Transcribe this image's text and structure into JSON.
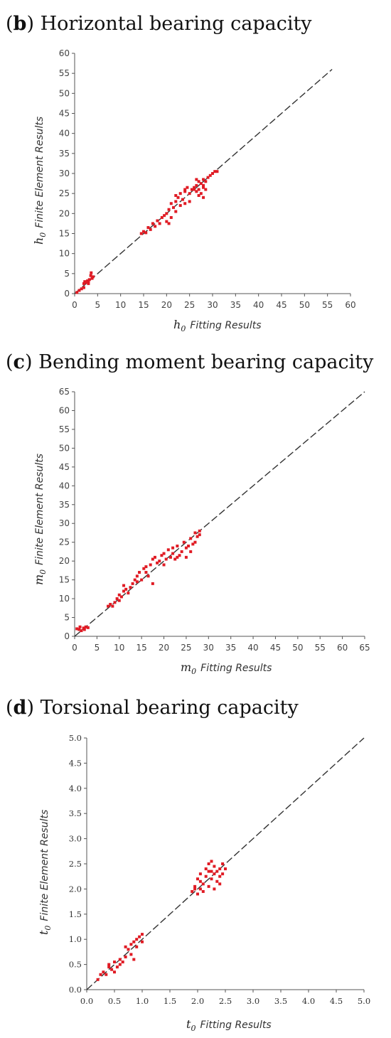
{
  "chart_data": [
    {
      "type": "scatter",
      "panel_letter": "b",
      "title": "Horizontal bearing capacity",
      "xlabel_var": "h",
      "xlabel_sub": "0",
      "xlabel_text": "Fitting Results",
      "ylabel_var": "h",
      "ylabel_sub": "0",
      "ylabel_text": "Finite Element Results",
      "xlim": [
        0,
        60
      ],
      "ylim": [
        0,
        60
      ],
      "ticks": [
        0,
        5,
        10,
        15,
        20,
        25,
        30,
        35,
        40,
        45,
        50,
        55,
        60
      ],
      "reference_line": {
        "style": "dashed",
        "from": [
          0,
          0
        ],
        "to": [
          56,
          56
        ]
      },
      "points": [
        [
          0.5,
          0.3
        ],
        [
          1,
          0.8
        ],
        [
          1.5,
          1.2
        ],
        [
          2,
          2.5
        ],
        [
          2.2,
          3
        ],
        [
          2.5,
          2.8
        ],
        [
          2.8,
          3.2
        ],
        [
          3,
          2.5
        ],
        [
          3.2,
          3.5
        ],
        [
          3.5,
          4.5
        ],
        [
          3.6,
          5.2
        ],
        [
          3.8,
          3.8
        ],
        [
          4,
          4.2
        ],
        [
          2,
          1.5
        ],
        [
          3,
          3
        ],
        [
          14.5,
          15
        ],
        [
          15,
          15.5
        ],
        [
          15.5,
          15.2
        ],
        [
          16,
          16.5
        ],
        [
          16.5,
          16
        ],
        [
          17,
          17.5
        ],
        [
          17.5,
          16.8
        ],
        [
          18,
          18.2
        ],
        [
          18.5,
          17.5
        ],
        [
          19,
          19
        ],
        [
          19.5,
          19.5
        ],
        [
          20,
          18
        ],
        [
          20,
          20
        ],
        [
          20.5,
          21
        ],
        [
          21,
          19
        ],
        [
          21,
          22.5
        ],
        [
          21.5,
          21.5
        ],
        [
          22,
          20.5
        ],
        [
          22,
          23
        ],
        [
          22.5,
          24
        ],
        [
          23,
          22
        ],
        [
          23,
          25
        ],
        [
          23.5,
          23.5
        ],
        [
          24,
          25.5
        ],
        [
          24,
          22.5
        ],
        [
          24.5,
          26.5
        ],
        [
          25,
          25
        ],
        [
          25.5,
          26
        ],
        [
          26,
          26.5
        ],
        [
          26.5,
          25.5
        ],
        [
          26.5,
          27
        ],
        [
          27,
          24.5
        ],
        [
          27,
          26
        ],
        [
          27.5,
          27.5
        ],
        [
          27.5,
          25
        ],
        [
          28,
          26.5
        ],
        [
          28,
          24
        ],
        [
          28.5,
          28
        ],
        [
          28.5,
          26
        ],
        [
          29,
          29
        ],
        [
          29.5,
          29.5
        ],
        [
          30,
          30
        ],
        [
          30.5,
          30.5
        ],
        [
          31,
          30.5
        ],
        [
          26,
          26
        ],
        [
          27,
          28
        ],
        [
          28,
          27
        ],
        [
          22,
          24.5
        ],
        [
          20.5,
          17.5
        ],
        [
          25,
          23
        ],
        [
          24,
          26
        ],
        [
          26.5,
          28.5
        ],
        [
          28,
          28.5
        ]
      ]
    },
    {
      "type": "scatter",
      "panel_letter": "c",
      "title": "Bending moment bearing capacity",
      "xlabel_var": "m",
      "xlabel_sub": "0",
      "xlabel_text": "Fitting Results",
      "ylabel_var": "m",
      "ylabel_sub": "0",
      "ylabel_text": "Finite Element Results",
      "xlim": [
        0,
        65
      ],
      "ylim": [
        0,
        65
      ],
      "ticks": [
        0,
        5,
        10,
        15,
        20,
        25,
        30,
        35,
        40,
        45,
        50,
        55,
        60,
        65
      ],
      "reference_line": {
        "style": "dashed",
        "from": [
          0,
          0
        ],
        "to": [
          65,
          65
        ]
      },
      "points": [
        [
          0.5,
          2
        ],
        [
          1,
          1.8
        ],
        [
          1.2,
          2.5
        ],
        [
          1.5,
          1.5
        ],
        [
          2,
          2.2
        ],
        [
          2.2,
          1.8
        ],
        [
          2.5,
          2.5
        ],
        [
          3,
          2.3
        ],
        [
          7.5,
          8
        ],
        [
          8,
          8.5
        ],
        [
          8.5,
          8
        ],
        [
          9,
          9
        ],
        [
          9.5,
          10
        ],
        [
          10,
          9.5
        ],
        [
          10,
          11
        ],
        [
          10.5,
          10.5
        ],
        [
          11,
          12
        ],
        [
          11,
          13.5
        ],
        [
          11.5,
          12.5
        ],
        [
          12,
          11.5
        ],
        [
          12.5,
          13
        ],
        [
          13,
          14
        ],
        [
          13.5,
          15
        ],
        [
          14,
          16
        ],
        [
          14,
          14.5
        ],
        [
          14.5,
          17
        ],
        [
          15,
          15
        ],
        [
          15.5,
          18
        ],
        [
          16,
          17
        ],
        [
          16,
          18.5
        ],
        [
          16.5,
          16
        ],
        [
          17,
          19
        ],
        [
          17.5,
          14
        ],
        [
          17.5,
          20.5
        ],
        [
          18,
          21
        ],
        [
          18.5,
          19.5
        ],
        [
          19,
          20
        ],
        [
          19.5,
          21.5
        ],
        [
          20,
          22
        ],
        [
          20,
          19
        ],
        [
          20.5,
          20.5
        ],
        [
          21,
          23
        ],
        [
          21.5,
          21
        ],
        [
          22,
          23.5
        ],
        [
          22.5,
          20.5
        ],
        [
          23,
          24
        ],
        [
          23.5,
          21.5
        ],
        [
          24,
          22.5
        ],
        [
          24.5,
          25
        ],
        [
          25,
          21
        ],
        [
          25,
          23.5
        ],
        [
          25.5,
          24
        ],
        [
          26,
          22.5
        ],
        [
          26,
          26
        ],
        [
          26.5,
          24.5
        ],
        [
          27,
          27.5
        ],
        [
          27,
          25
        ],
        [
          27.5,
          26.5
        ],
        [
          28,
          27
        ],
        [
          28,
          28
        ],
        [
          22,
          22
        ],
        [
          23,
          21
        ]
      ]
    },
    {
      "type": "scatter",
      "panel_letter": "d",
      "title": "Torsional bearing capacity",
      "xlabel_var": "t",
      "xlabel_sub": "0",
      "xlabel_text": "Fitting Results",
      "ylabel_var": "t",
      "ylabel_sub": "0",
      "ylabel_text": "Finite Element Results",
      "xlim": [
        0,
        5
      ],
      "ylim": [
        0,
        5
      ],
      "ticks": [
        "0.0",
        "0.5",
        "1.0",
        "1.5",
        "2.0",
        "2.5",
        "3.0",
        "3.5",
        "4.0",
        "4.5",
        "5.0"
      ],
      "reference_line": {
        "style": "dashed",
        "from": [
          0,
          0
        ],
        "to": [
          5,
          5
        ]
      },
      "points": [
        [
          0.2,
          0.2
        ],
        [
          0.25,
          0.3
        ],
        [
          0.3,
          0.35
        ],
        [
          0.35,
          0.3
        ],
        [
          0.4,
          0.45
        ],
        [
          0.4,
          0.5
        ],
        [
          0.45,
          0.4
        ],
        [
          0.5,
          0.55
        ],
        [
          0.5,
          0.35
        ],
        [
          0.55,
          0.45
        ],
        [
          0.6,
          0.6
        ],
        [
          0.6,
          0.5
        ],
        [
          0.65,
          0.55
        ],
        [
          0.7,
          0.65
        ],
        [
          0.7,
          0.85
        ],
        [
          0.75,
          0.8
        ],
        [
          0.8,
          0.7
        ],
        [
          0.8,
          0.9
        ],
        [
          0.85,
          0.95
        ],
        [
          0.85,
          0.6
        ],
        [
          0.9,
          1.0
        ],
        [
          0.9,
          0.85
        ],
        [
          0.95,
          1.05
        ],
        [
          1.0,
          1.1
        ],
        [
          1.0,
          0.95
        ],
        [
          1.9,
          1.95
        ],
        [
          1.95,
          2.05
        ],
        [
          2.0,
          1.9
        ],
        [
          2.0,
          2.2
        ],
        [
          2.05,
          2.3
        ],
        [
          2.05,
          2.0
        ],
        [
          2.1,
          2.1
        ],
        [
          2.1,
          1.95
        ],
        [
          2.15,
          2.25
        ],
        [
          2.15,
          2.4
        ],
        [
          2.2,
          2.05
        ],
        [
          2.2,
          2.35
        ],
        [
          2.2,
          2.5
        ],
        [
          2.25,
          2.2
        ],
        [
          2.25,
          2.55
        ],
        [
          2.3,
          2.0
        ],
        [
          2.3,
          2.3
        ],
        [
          2.3,
          2.45
        ],
        [
          2.35,
          2.15
        ],
        [
          2.35,
          2.35
        ],
        [
          2.4,
          2.25
        ],
        [
          2.4,
          2.4
        ],
        [
          2.4,
          2.1
        ],
        [
          2.45,
          2.3
        ],
        [
          2.45,
          2.5
        ],
        [
          2.5,
          2.4
        ],
        [
          1.95,
          2.0
        ],
        [
          2.05,
          2.15
        ],
        [
          2.25,
          2.35
        ]
      ]
    }
  ]
}
